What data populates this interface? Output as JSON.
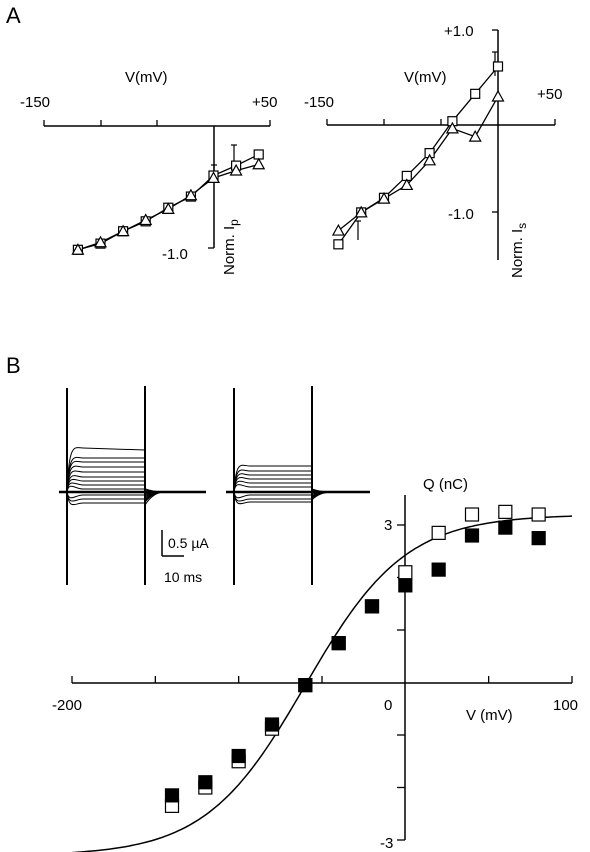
{
  "panel_labels": {
    "a": "A",
    "b": "B"
  },
  "colors": {
    "ink": "#000000",
    "background": "#ffffff"
  },
  "chart_data": [
    {
      "id": "A1",
      "type": "line",
      "xlabel": "V(mV)",
      "ylabel_main": "Norm. I",
      "ylabel_sub": "p",
      "x_tick_labels": [
        "-150",
        "+50"
      ],
      "y_tick_labels": [
        "-1.0"
      ],
      "xlim": [
        -150,
        50
      ],
      "ylim": [
        -1.05,
        0
      ],
      "marker_colors": {
        "square": "#ffffff",
        "triangle": "#ffffff"
      },
      "series": [
        {
          "marker": "square",
          "x": [
            -120,
            -100,
            -80,
            -60,
            -40,
            -20,
            0,
            20,
            40
          ],
          "y": [
            -1.0,
            -0.95,
            -0.85,
            -0.77,
            -0.66,
            -0.57,
            -0.4,
            -0.32,
            -0.23
          ]
        },
        {
          "marker": "triangle",
          "x": [
            -120,
            -100,
            -80,
            -60,
            -40,
            -20,
            0,
            20,
            40
          ],
          "y": [
            -1.0,
            -0.94,
            -0.85,
            -0.76,
            -0.67,
            -0.56,
            -0.42,
            -0.36,
            -0.31
          ]
        }
      ]
    },
    {
      "id": "A2",
      "type": "line",
      "xlabel": "V(mV)",
      "ylabel_main": "Norm. I",
      "ylabel_sub": "s",
      "x_tick_labels": [
        "-150",
        "+50"
      ],
      "y_tick_labels": [
        "+1.0",
        "-1.0"
      ],
      "xlim": [
        -150,
        50
      ],
      "ylim": [
        -1.5,
        1.0
      ],
      "marker_colors": {
        "square": "#ffffff",
        "triangle": "#ffffff"
      },
      "series": [
        {
          "marker": "square",
          "x": [
            -140,
            -120,
            -100,
            -80,
            -60,
            -40,
            -20,
            0
          ],
          "y": [
            -1.35,
            -1.0,
            -0.84,
            -0.6,
            -0.35,
            0.0,
            0.3,
            0.6
          ]
        },
        {
          "marker": "triangle",
          "x": [
            -140,
            -120,
            -100,
            -80,
            -60,
            -40,
            -20,
            0
          ],
          "y": [
            -1.2,
            -1.0,
            -0.85,
            -0.7,
            -0.43,
            -0.08,
            -0.17,
            0.27
          ]
        }
      ]
    },
    {
      "id": "B",
      "type": "scatter",
      "xlabel": "V (mV)",
      "ylabel": "Q (nC)",
      "x_tick_labels": [
        "-200",
        "0",
        "100"
      ],
      "y_tick_labels": [
        "3",
        "-3"
      ],
      "xlim": [
        -200,
        100
      ],
      "ylim": [
        -3,
        3
      ],
      "marker_colors": {
        "open": "#ffffff",
        "filled": "#000000"
      },
      "fit": {
        "type": "boltzmann",
        "qmin": -3.3,
        "qmax": 3.2,
        "v_half": -60,
        "slope": 30
      },
      "series": [
        {
          "marker": "open-square",
          "x": [
            -140,
            -120,
            -100,
            -80,
            -60,
            -40,
            -20,
            0,
            20,
            40,
            60,
            80
          ],
          "y": [
            -2.35,
            -2.0,
            -1.5,
            -0.88,
            -0.05,
            0.75,
            1.45,
            2.1,
            2.85,
            3.2,
            3.25,
            3.2
          ]
        },
        {
          "marker": "filled-square",
          "x": [
            -140,
            -120,
            -100,
            -80,
            -60,
            -40,
            -20,
            0,
            20,
            40,
            60,
            80
          ],
          "y": [
            -2.15,
            -1.9,
            -1.4,
            -0.8,
            -0.05,
            0.75,
            1.45,
            1.85,
            2.15,
            2.8,
            2.95,
            2.75
          ]
        }
      ]
    }
  ],
  "traces_inset": {
    "scale_current": "0.5 µA",
    "scale_time": "10 ms"
  }
}
